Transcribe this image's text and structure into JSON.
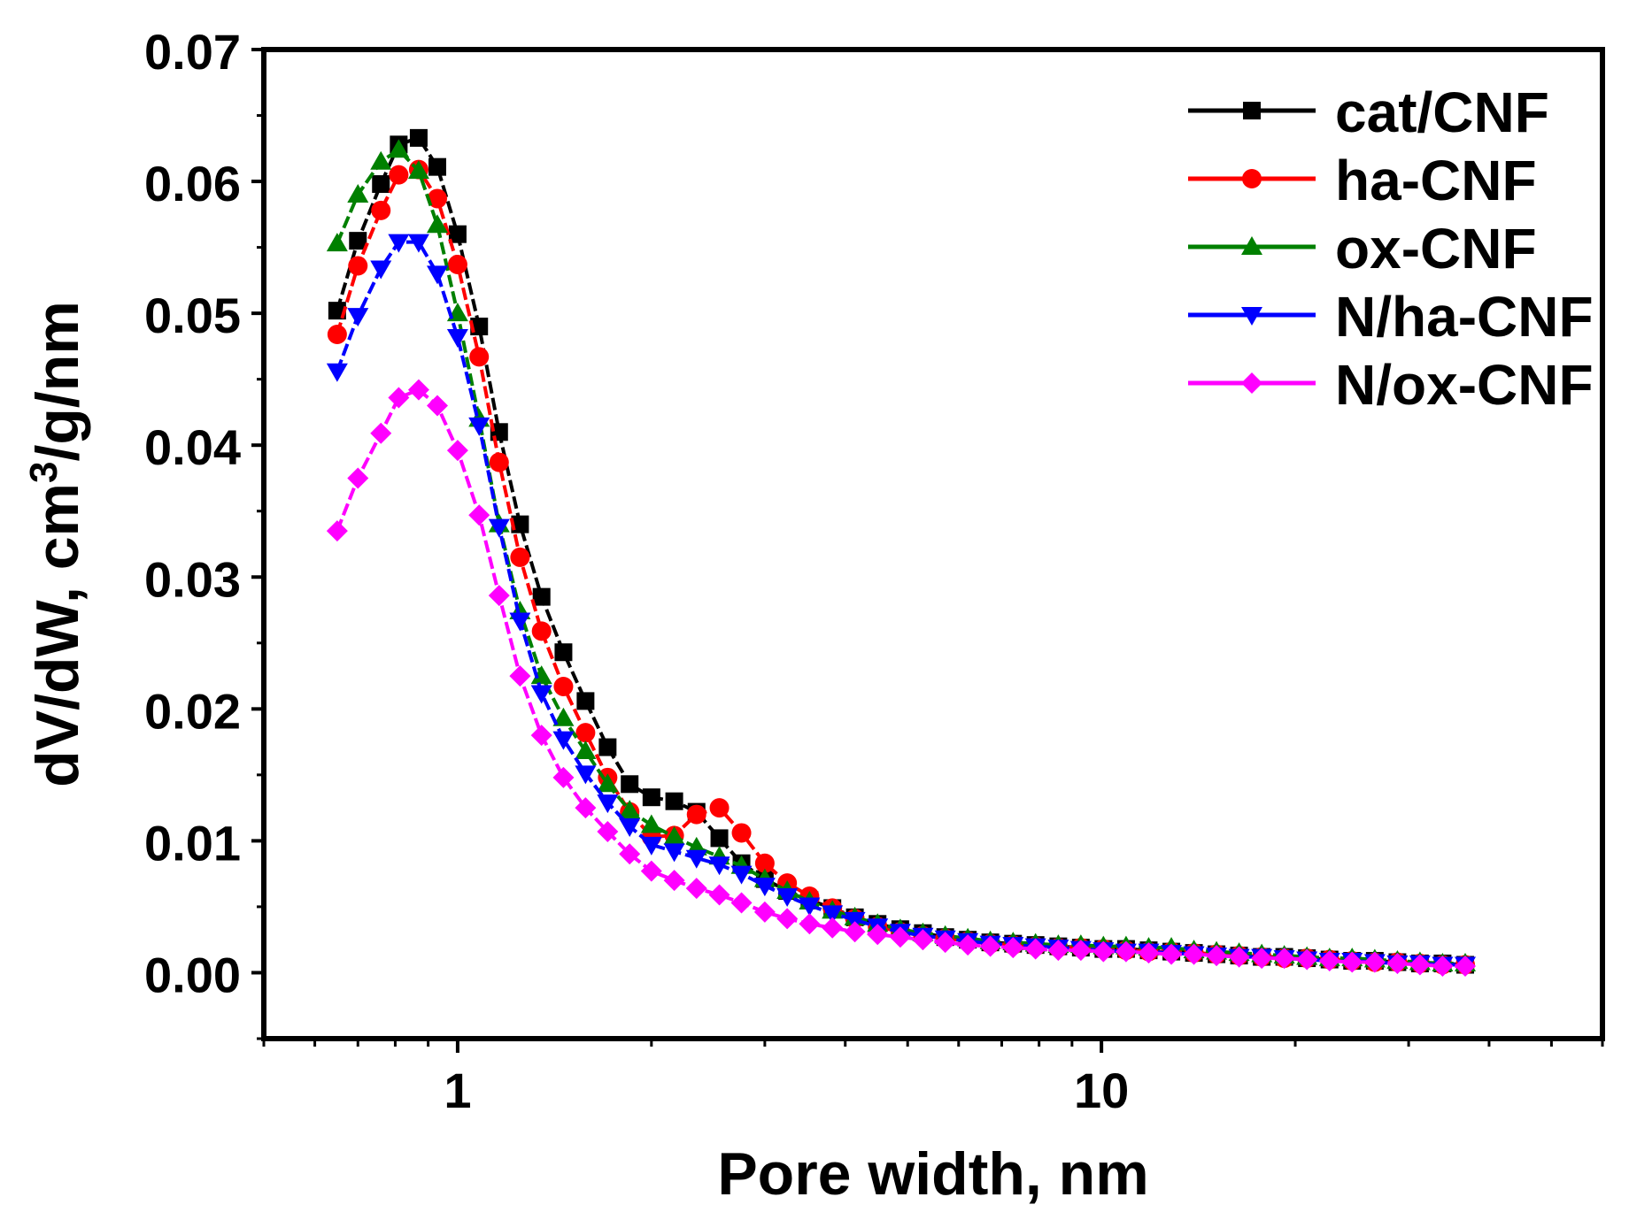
{
  "chart_data": {
    "type": "line",
    "xscale": "log",
    "xlim": [
      0.5,
      60
    ],
    "ylim": [
      -0.005,
      0.07
    ],
    "xlabel": "Pore width, nm",
    "ylabel": {
      "main": "dV/dW, cm",
      "sup": "3",
      "rest": "/g/nm"
    },
    "yticks": [
      0.0,
      0.01,
      0.02,
      0.03,
      0.04,
      0.05,
      0.06,
      0.07
    ],
    "ytick_labels": [
      "0.00",
      "0.01",
      "0.02",
      "0.03",
      "0.04",
      "0.05",
      "0.06",
      "0.07"
    ],
    "xticks_major": [
      1,
      10
    ],
    "xtick_labels": [
      "1",
      "10"
    ],
    "grid": false,
    "legend_position": "top-right",
    "x": [
      0.65,
      0.7,
      0.76,
      0.81,
      0.87,
      0.93,
      1.0,
      1.08,
      1.16,
      1.25,
      1.35,
      1.46,
      1.58,
      1.71,
      1.85,
      2.0,
      2.17,
      2.35,
      2.55,
      2.76,
      3.0,
      3.25,
      3.52,
      3.82,
      4.14,
      4.49,
      4.87,
      5.28,
      5.72,
      6.2,
      6.72,
      7.29,
      7.9,
      8.57,
      9.29,
      10.07,
      10.92,
      11.84,
      12.84,
      13.92,
      15.09,
      16.36,
      17.74,
      19.23,
      20.85,
      22.61,
      24.51,
      26.58,
      28.82,
      31.24,
      33.87,
      36.73
    ],
    "series": [
      {
        "name": "cat/CNF",
        "color": "#000000",
        "marker": "square",
        "values": [
          0.0502,
          0.0555,
          0.0598,
          0.0628,
          0.0633,
          0.0611,
          0.056,
          0.049,
          0.041,
          0.034,
          0.0285,
          0.0243,
          0.0206,
          0.0171,
          0.0143,
          0.0133,
          0.013,
          0.0122,
          0.0102,
          0.0083,
          0.0071,
          0.0062,
          0.0055,
          0.0049,
          0.0042,
          0.0037,
          0.0033,
          0.003,
          0.0027,
          0.0025,
          0.0023,
          0.0022,
          0.0021,
          0.002,
          0.0019,
          0.0018,
          0.0018,
          0.0017,
          0.0016,
          0.0015,
          0.0014,
          0.0013,
          0.0012,
          0.0012,
          0.0011,
          0.001,
          0.0009,
          0.0009,
          0.0008,
          0.0007,
          0.0007,
          0.0006
        ]
      },
      {
        "name": "ha-CNF",
        "color": "#ff0000",
        "marker": "circle",
        "values": [
          0.0484,
          0.0536,
          0.0578,
          0.0605,
          0.0609,
          0.0587,
          0.0537,
          0.0467,
          0.0387,
          0.0315,
          0.0259,
          0.0217,
          0.0182,
          0.0148,
          0.0122,
          0.0103,
          0.0104,
          0.012,
          0.0125,
          0.0106,
          0.0083,
          0.0068,
          0.0058,
          0.0049,
          0.0041,
          0.0035,
          0.0031,
          0.0028,
          0.0026,
          0.0024,
          0.0022,
          0.0021,
          0.002,
          0.0019,
          0.0019,
          0.0018,
          0.0017,
          0.0016,
          0.0016,
          0.0015,
          0.0014,
          0.0013,
          0.0012,
          0.0011,
          0.0011,
          0.001,
          0.0009,
          0.0008,
          0.0008,
          0.0007,
          0.0006,
          0.0006
        ]
      },
      {
        "name": "ox-CNF",
        "color": "#008000",
        "marker": "triangle-up",
        "values": [
          0.0553,
          0.059,
          0.0615,
          0.0624,
          0.0608,
          0.0567,
          0.05,
          0.042,
          0.034,
          0.0274,
          0.0225,
          0.0193,
          0.0168,
          0.0143,
          0.0123,
          0.0112,
          0.0103,
          0.0095,
          0.0088,
          0.0081,
          0.0071,
          0.0062,
          0.0054,
          0.0047,
          0.0042,
          0.0037,
          0.0033,
          0.003,
          0.0028,
          0.0026,
          0.0024,
          0.0023,
          0.0022,
          0.0021,
          0.0021,
          0.002,
          0.002,
          0.0019,
          0.0019,
          0.0017,
          0.0016,
          0.0015,
          0.0014,
          0.0013,
          0.0012,
          0.0011,
          0.0011,
          0.001,
          0.0009,
          0.0008,
          0.0007,
          0.0007
        ]
      },
      {
        "name": "N/ha-CNF",
        "color": "#0000ff",
        "marker": "triangle-down",
        "values": [
          0.0456,
          0.0498,
          0.0534,
          0.0554,
          0.0554,
          0.053,
          0.0482,
          0.0415,
          0.0338,
          0.0267,
          0.0212,
          0.0177,
          0.0151,
          0.0129,
          0.0111,
          0.0097,
          0.0092,
          0.0087,
          0.0082,
          0.0075,
          0.0066,
          0.0058,
          0.0051,
          0.0045,
          0.004,
          0.0035,
          0.0031,
          0.0028,
          0.0026,
          0.0024,
          0.0022,
          0.0021,
          0.002,
          0.0019,
          0.0018,
          0.0017,
          0.0016,
          0.0016,
          0.0015,
          0.0014,
          0.0013,
          0.0012,
          0.0012,
          0.0011,
          0.001,
          0.0009,
          0.0009,
          0.0008,
          0.0007,
          0.0007,
          0.0006,
          0.0006
        ]
      },
      {
        "name": "N/ox-CNF",
        "color": "#ff00ff",
        "marker": "diamond",
        "values": [
          0.0335,
          0.0375,
          0.0409,
          0.0436,
          0.0442,
          0.043,
          0.0396,
          0.0347,
          0.0286,
          0.0225,
          0.018,
          0.0148,
          0.0125,
          0.0107,
          0.009,
          0.0077,
          0.007,
          0.0064,
          0.0059,
          0.0053,
          0.0046,
          0.0041,
          0.0037,
          0.0034,
          0.0031,
          0.0029,
          0.0027,
          0.0025,
          0.0023,
          0.0021,
          0.002,
          0.0019,
          0.0018,
          0.0017,
          0.0017,
          0.0016,
          0.0016,
          0.0015,
          0.0014,
          0.0014,
          0.0013,
          0.0012,
          0.0011,
          0.0011,
          0.001,
          0.0009,
          0.0008,
          0.0008,
          0.0007,
          0.0006,
          0.0005,
          0.0005
        ]
      }
    ]
  }
}
